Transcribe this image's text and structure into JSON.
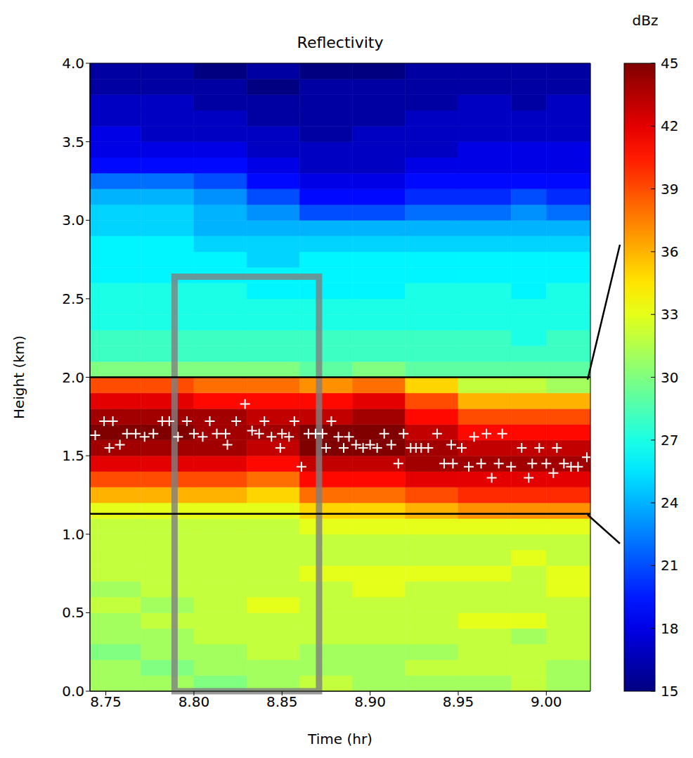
{
  "chart_data": {
    "type": "heatmap",
    "title": "Reflectivity",
    "x_label": "Time (hr)",
    "y_label": "Height (km)",
    "xlim": [
      8.741,
      9.025
    ],
    "ylim": [
      0,
      4.0
    ],
    "xticks": [
      8.75,
      {
        "value": 8.8,
        "label": "8.80"
      },
      8.85,
      {
        "value": 8.9,
        "label": "8.90"
      },
      8.95,
      {
        "value": 9.0,
        "label": "9.00"
      }
    ],
    "yticks": [
      {
        "value": 0,
        "label": "0.0"
      },
      0.5,
      {
        "value": 1,
        "label": "1.0"
      },
      1.5,
      {
        "value": 2,
        "label": "2.0"
      },
      2.5,
      {
        "value": 3,
        "label": "3.0"
      },
      3.5,
      {
        "value": 4,
        "label": "4.0"
      }
    ],
    "heatmap": {
      "time_edges": [
        8.741,
        8.77,
        8.8,
        8.83,
        8.86,
        8.89,
        8.92,
        8.95,
        8.98,
        9.0,
        9.025
      ],
      "height_edges": [
        0,
        0.1,
        0.2,
        0.3,
        0.4,
        0.5,
        0.6,
        0.7,
        0.8,
        0.9,
        1.0,
        1.1,
        1.2,
        1.3,
        1.4,
        1.5,
        1.6,
        1.7,
        1.8,
        1.9,
        2.0,
        2.1,
        2.2,
        2.3,
        2.4,
        2.5,
        2.6,
        2.7,
        2.8,
        2.9,
        3.0,
        3.1,
        3.2,
        3.3,
        3.4,
        3.5,
        3.6,
        3.7,
        3.8,
        3.9,
        4.0
      ],
      "cells": [
        [
          31,
          31,
          30,
          31,
          32,
          31,
          31,
          31,
          32,
          31
        ],
        [
          31,
          30,
          31,
          31,
          31,
          31,
          32,
          32,
          32,
          31
        ],
        [
          30,
          31,
          31,
          32,
          31,
          31,
          31,
          32,
          32,
          32
        ],
        [
          31,
          31,
          32,
          32,
          32,
          32,
          32,
          32,
          31,
          32
        ],
        [
          31,
          32,
          32,
          32,
          32,
          32,
          32,
          33,
          33,
          32
        ],
        [
          32,
          31,
          32,
          33,
          32,
          32,
          32,
          32,
          32,
          32
        ],
        [
          31,
          32,
          32,
          32,
          32,
          33,
          32,
          32,
          32,
          33
        ],
        [
          32,
          32,
          32,
          32,
          33,
          33,
          33,
          33,
          32,
          33
        ],
        [
          32,
          32,
          32,
          32,
          32,
          32,
          32,
          32,
          33,
          32
        ],
        [
          32,
          32,
          32,
          32,
          32,
          32,
          32,
          32,
          32,
          32
        ],
        [
          32,
          32,
          32,
          32,
          33,
          33,
          33,
          33,
          33,
          33
        ],
        [
          33,
          33,
          33,
          33,
          35,
          35,
          36,
          37,
          37,
          37
        ],
        [
          36,
          36,
          36,
          35,
          38,
          38,
          39,
          40,
          40,
          40
        ],
        [
          39,
          39,
          39,
          38,
          41,
          41,
          42,
          42,
          42,
          42
        ],
        [
          42,
          42,
          42,
          41,
          43,
          43,
          44,
          44,
          44,
          44
        ],
        [
          44,
          44,
          44,
          43,
          45,
          45,
          44,
          43,
          43,
          43
        ],
        [
          45,
          45,
          44,
          44,
          45,
          45,
          43,
          41,
          41,
          41
        ],
        [
          44,
          44,
          44,
          43,
          43,
          44,
          41,
          39,
          39,
          39
        ],
        [
          42,
          42,
          41,
          41,
          41,
          42,
          39,
          36,
          36,
          36
        ],
        [
          39,
          39,
          38,
          38,
          37,
          38,
          35,
          32,
          32,
          31
        ],
        [
          30,
          30,
          30,
          30,
          29,
          30,
          29,
          29,
          29,
          29
        ],
        [
          28,
          28,
          28,
          28,
          28,
          28,
          28,
          28,
          28,
          28
        ],
        [
          28,
          28,
          28,
          28,
          28,
          28,
          28,
          28,
          27,
          28
        ],
        [
          27,
          27,
          27,
          27,
          27,
          27,
          27,
          27,
          27,
          27
        ],
        [
          27,
          27,
          27,
          27,
          27,
          27,
          27,
          27,
          27,
          27
        ],
        [
          27,
          27,
          27,
          26,
          26,
          26,
          27,
          27,
          26,
          27
        ],
        [
          26,
          26,
          26,
          26,
          26,
          26,
          26,
          26,
          26,
          26
        ],
        [
          26,
          26,
          26,
          25,
          26,
          26,
          26,
          26,
          26,
          26
        ],
        [
          26,
          26,
          25,
          25,
          25,
          25,
          25,
          25,
          25,
          25
        ],
        [
          25,
          25,
          24,
          24,
          24,
          24,
          24,
          24,
          24,
          24
        ],
        [
          25,
          25,
          24,
          23,
          21,
          21,
          22,
          22,
          23,
          22
        ],
        [
          24,
          24,
          23,
          21,
          19,
          19,
          20,
          20,
          21,
          20
        ],
        [
          22,
          22,
          21,
          19,
          18,
          18,
          19,
          19,
          19,
          19
        ],
        [
          19,
          19,
          19,
          18,
          17,
          17,
          18,
          18,
          18,
          18
        ],
        [
          18,
          18,
          18,
          17,
          17,
          17,
          17,
          18,
          18,
          18
        ],
        [
          18,
          17,
          17,
          17,
          16,
          17,
          17,
          17,
          17,
          17
        ],
        [
          17,
          17,
          17,
          16,
          16,
          16,
          17,
          17,
          17,
          17
        ],
        [
          17,
          17,
          16,
          16,
          16,
          16,
          16,
          17,
          16,
          17
        ],
        [
          16,
          16,
          16,
          15,
          16,
          16,
          16,
          16,
          16,
          16
        ],
        [
          16,
          16,
          15,
          16,
          15,
          15,
          16,
          16,
          16,
          16
        ]
      ]
    },
    "colorbar": {
      "label": "dBz",
      "range": [
        15,
        45
      ],
      "ticks": [
        15,
        18,
        21,
        24,
        27,
        30,
        33,
        36,
        39,
        42,
        45
      ]
    },
    "markers": {
      "color": "#ffffff",
      "marker": "plus",
      "x": [
        8.744,
        8.749,
        8.754,
        8.752,
        8.758,
        8.762,
        8.767,
        8.772,
        8.777,
        8.782,
        8.786,
        8.791,
        8.796,
        8.8,
        8.805,
        8.809,
        8.813,
        8.818,
        8.819,
        8.824,
        8.829,
        8.833,
        8.837,
        8.84,
        8.844,
        8.849,
        8.85,
        8.854,
        8.857,
        8.861,
        8.865,
        8.869,
        8.873,
        8.875,
        8.878,
        8.882,
        8.885,
        8.888,
        8.892,
        8.896,
        8.9,
        8.904,
        8.908,
        8.912,
        8.916,
        8.919,
        8.923,
        8.926,
        8.929,
        8.933,
        8.938,
        8.942,
        8.947,
        8.946,
        8.952,
        8.956,
        8.959,
        8.963,
        8.966,
        8.969,
        8.973,
        8.975,
        8.98,
        8.986,
        8.99,
        8.992,
        8.996,
        9.0,
        9.004,
        9.006,
        9.01,
        9.014,
        9.018,
        9.023
      ],
      "y": [
        1.63,
        1.72,
        1.72,
        1.55,
        1.57,
        1.64,
        1.64,
        1.62,
        1.64,
        1.72,
        1.72,
        1.62,
        1.72,
        1.64,
        1.62,
        1.72,
        1.64,
        1.64,
        1.57,
        1.72,
        1.83,
        1.66,
        1.64,
        1.72,
        1.62,
        1.55,
        1.64,
        1.62,
        1.72,
        1.43,
        1.64,
        1.64,
        1.64,
        1.55,
        1.72,
        1.62,
        1.55,
        1.62,
        1.57,
        1.55,
        1.57,
        1.55,
        1.64,
        1.57,
        1.45,
        1.64,
        1.55,
        1.55,
        1.55,
        1.55,
        1.64,
        1.45,
        1.45,
        1.57,
        1.55,
        1.43,
        1.62,
        1.45,
        1.64,
        1.36,
        1.45,
        1.64,
        1.43,
        1.55,
        1.36,
        1.45,
        1.55,
        1.45,
        1.39,
        1.55,
        1.45,
        1.43,
        1.43,
        1.49
      ]
    },
    "highlight": {
      "x": [
        8.789,
        8.871
      ],
      "y": [
        0,
        2.64
      ],
      "color": "#808080"
    },
    "reference_lines": {
      "y": [
        2.0,
        1.13
      ],
      "color": "#000000"
    }
  }
}
